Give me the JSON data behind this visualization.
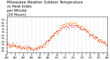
{
  "title": "Milwaukee Weather Outdoor Temperature\nvs Heat Index\nper Minute\n(24 Hours)",
  "title_fontsize": 3.8,
  "bg_color": "#ffffff",
  "text_color": "#000000",
  "temp_color": "#dd0000",
  "heat_color": "#ff8800",
  "ylabel_fontsize": 3.2,
  "xlabel_fontsize": 2.8,
  "ylim": [
    38,
    95
  ],
  "yticks": [
    40,
    45,
    50,
    55,
    60,
    65,
    70,
    75,
    80,
    85,
    90
  ],
  "time_hours": [
    0,
    1,
    2,
    3,
    4,
    5,
    6,
    7,
    8,
    9,
    10,
    11,
    12,
    13,
    14,
    15,
    16,
    17,
    18,
    19,
    20,
    21,
    22,
    23,
    24
  ],
  "temp_values": [
    50,
    49,
    48,
    47,
    46,
    45,
    44,
    44,
    46,
    50,
    57,
    64,
    71,
    76,
    79,
    80,
    80,
    79,
    76,
    72,
    67,
    62,
    58,
    54,
    52
  ],
  "heat_values": [
    50,
    49,
    48,
    47,
    46,
    45,
    44,
    44,
    46,
    50,
    57,
    64,
    72,
    79,
    84,
    85,
    84,
    82,
    78,
    73,
    67,
    62,
    58,
    54,
    52
  ],
  "grid_color": "#aaaaaa",
  "tick_color": "#333333",
  "noise_temp": 2.0,
  "noise_heat": 1.5,
  "downsample": 8
}
